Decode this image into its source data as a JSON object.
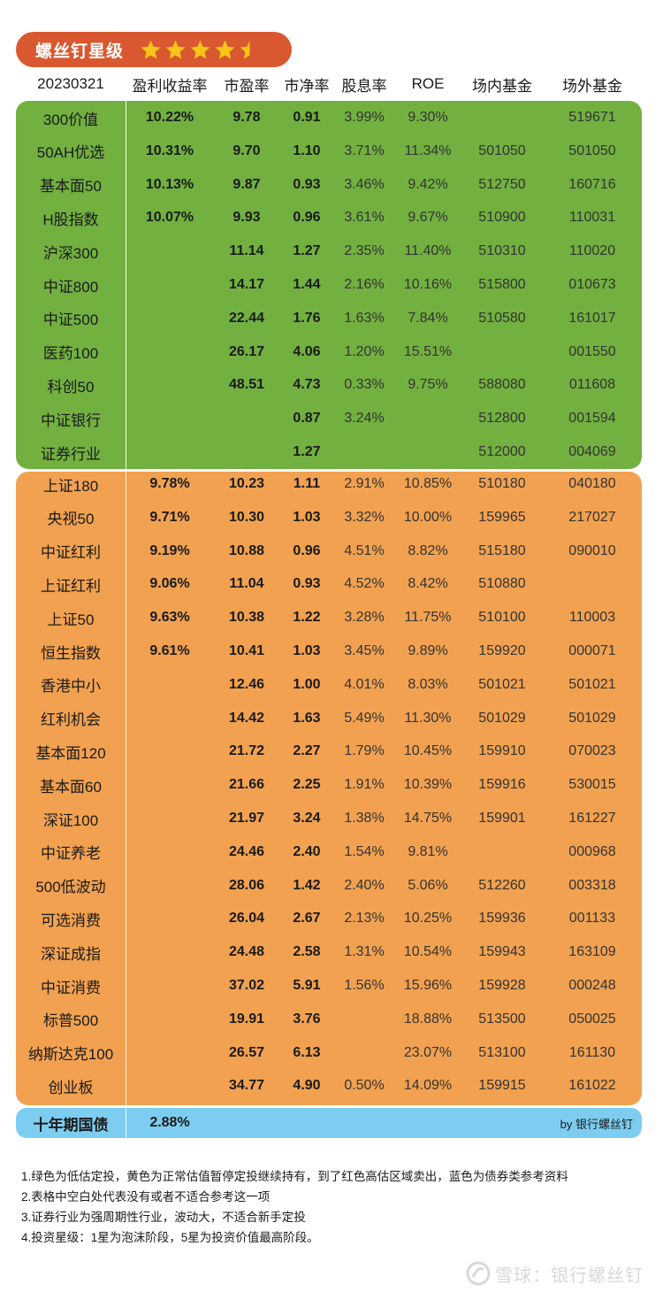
{
  "badge": {
    "title": "螺丝钉星级",
    "stars_full": 4,
    "stars_half": 1,
    "star_color": "#f5c518"
  },
  "header": [
    "20230321",
    "盈利收益率",
    "市盈率",
    "市净率",
    "股息率",
    "ROE",
    "场内基金",
    "场外基金"
  ],
  "colors": {
    "low": "#72b040",
    "normal": "#f1a150",
    "bond": "#7dcdf0",
    "badge": "#d9582f"
  },
  "green_rows": [
    [
      "300价值",
      "10.22%",
      "9.78",
      "0.91",
      "3.99%",
      "9.30%",
      "",
      "519671"
    ],
    [
      "50AH优选",
      "10.31%",
      "9.70",
      "1.10",
      "3.71%",
      "11.34%",
      "501050",
      "501050"
    ],
    [
      "基本面50",
      "10.13%",
      "9.87",
      "0.93",
      "3.46%",
      "9.42%",
      "512750",
      "160716"
    ],
    [
      "H股指数",
      "10.07%",
      "9.93",
      "0.96",
      "3.61%",
      "9.67%",
      "510900",
      "110031"
    ],
    [
      "沪深300",
      "",
      "11.14",
      "1.27",
      "2.35%",
      "11.40%",
      "510310",
      "110020"
    ],
    [
      "中证800",
      "",
      "14.17",
      "1.44",
      "2.16%",
      "10.16%",
      "515800",
      "010673"
    ],
    [
      "中证500",
      "",
      "22.44",
      "1.76",
      "1.63%",
      "7.84%",
      "510580",
      "161017"
    ],
    [
      "医药100",
      "",
      "26.17",
      "4.06",
      "1.20%",
      "15.51%",
      "",
      "001550"
    ],
    [
      "科创50",
      "",
      "48.51",
      "4.73",
      "0.33%",
      "9.75%",
      "588080",
      "011608"
    ],
    [
      "中证银行",
      "",
      "",
      "0.87",
      "3.24%",
      "",
      "512800",
      "001594"
    ],
    [
      "证券行业",
      "",
      "",
      "1.27",
      "",
      "",
      "512000",
      "004069"
    ]
  ],
  "orange_rows": [
    [
      "上证180",
      "9.78%",
      "10.23",
      "1.11",
      "2.91%",
      "10.85%",
      "510180",
      "040180"
    ],
    [
      "央视50",
      "9.71%",
      "10.30",
      "1.03",
      "3.32%",
      "10.00%",
      "159965",
      "217027"
    ],
    [
      "中证红利",
      "9.19%",
      "10.88",
      "0.96",
      "4.51%",
      "8.82%",
      "515180",
      "090010"
    ],
    [
      "上证红利",
      "9.06%",
      "11.04",
      "0.93",
      "4.52%",
      "8.42%",
      "510880",
      ""
    ],
    [
      "上证50",
      "9.63%",
      "10.38",
      "1.22",
      "3.28%",
      "11.75%",
      "510100",
      "110003"
    ],
    [
      "恒生指数",
      "9.61%",
      "10.41",
      "1.03",
      "3.45%",
      "9.89%",
      "159920",
      "000071"
    ],
    [
      "香港中小",
      "",
      "12.46",
      "1.00",
      "4.01%",
      "8.03%",
      "501021",
      "501021"
    ],
    [
      "红利机会",
      "",
      "14.42",
      "1.63",
      "5.49%",
      "11.30%",
      "501029",
      "501029"
    ],
    [
      "基本面120",
      "",
      "21.72",
      "2.27",
      "1.79%",
      "10.45%",
      "159910",
      "070023"
    ],
    [
      "基本面60",
      "",
      "21.66",
      "2.25",
      "1.91%",
      "10.39%",
      "159916",
      "530015"
    ],
    [
      "深证100",
      "",
      "21.97",
      "3.24",
      "1.38%",
      "14.75%",
      "159901",
      "161227"
    ],
    [
      "中证养老",
      "",
      "24.46",
      "2.40",
      "1.54%",
      "9.81%",
      "",
      "000968"
    ],
    [
      "500低波动",
      "",
      "28.06",
      "1.42",
      "2.40%",
      "5.06%",
      "512260",
      "003318"
    ],
    [
      "可选消费",
      "",
      "26.04",
      "2.67",
      "2.13%",
      "10.25%",
      "159936",
      "001133"
    ],
    [
      "深证成指",
      "",
      "24.48",
      "2.58",
      "1.31%",
      "10.54%",
      "159943",
      "163109"
    ],
    [
      "中证消费",
      "",
      "37.02",
      "5.91",
      "1.56%",
      "15.96%",
      "159928",
      "000248"
    ],
    [
      "标普500",
      "",
      "19.91",
      "3.76",
      "",
      "18.88%",
      "513500",
      "050025"
    ],
    [
      "纳斯达克100",
      "",
      "26.57",
      "6.13",
      "",
      "23.07%",
      "513100",
      "161130"
    ],
    [
      "创业板",
      "",
      "34.77",
      "4.90",
      "0.50%",
      "14.09%",
      "159915",
      "161022"
    ]
  ],
  "bond": {
    "name": "十年期国债",
    "yield": "2.88%",
    "by": "by 银行螺丝钉"
  },
  "notes": [
    "1.绿色为低估定投，黄色为正常估值暂停定投继续持有，到了红色高估区域卖出，蓝色为债券类参考资料",
    "2.表格中空白处代表没有或者不适合参考这一项",
    "3.证券行业为强周期性行业，波动大，不适合新手定投",
    "4.投资星级：1星为泡沫阶段，5星为投资价值最高阶段。"
  ],
  "watermark": "雪球：银行螺丝钉"
}
